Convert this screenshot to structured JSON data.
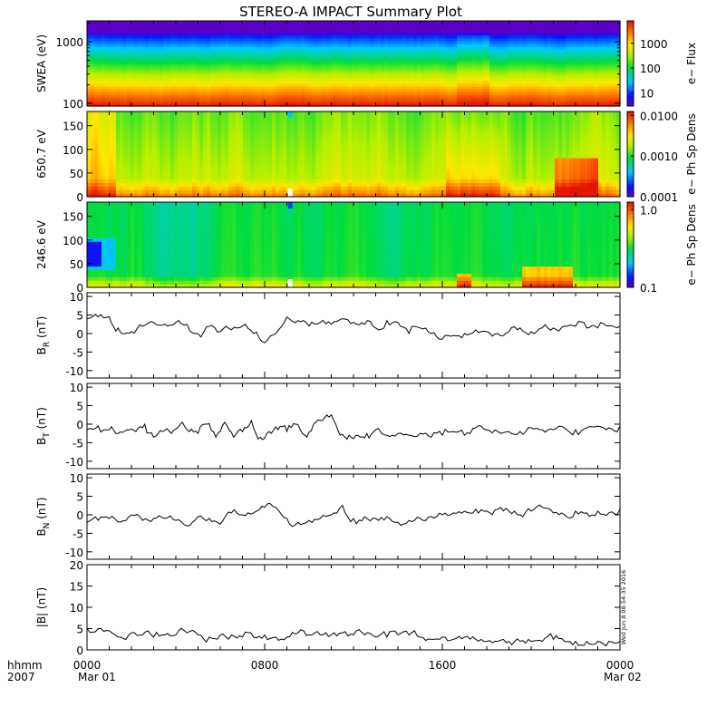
{
  "title": "STEREO-A IMPACT Summary Plot",
  "timestamp": "Wed Jun 8 08:54:35 2016",
  "x_axis": {
    "row1_label": "hhmm",
    "row2_label": "2007",
    "ticks": [
      {
        "hour": 0,
        "label": "0000",
        "date": "Mar 01"
      },
      {
        "hour": 8,
        "label": "0800",
        "date": ""
      },
      {
        "hour": 16,
        "label": "1600",
        "date": ""
      },
      {
        "hour": 24,
        "label": "0000",
        "date": "Mar 02"
      }
    ],
    "range_hours": [
      0,
      24
    ]
  },
  "chart_data": [
    {
      "type": "heatmap",
      "ylabel": "SWEA (eV)",
      "ylog": true,
      "ylim": [
        90,
        2200
      ],
      "yticks": [
        {
          "v": 1000,
          "label": "1000"
        },
        {
          "v": 100,
          "label": "100"
        }
      ],
      "colorbar": {
        "label": "e− Flux",
        "log": true,
        "range": [
          3,
          8000
        ],
        "ticks": [
          {
            "v": 1000,
            "label": "1000"
          },
          {
            "v": 100,
            "label": "100"
          },
          {
            "v": 10,
            "label": "10"
          }
        ]
      }
    },
    {
      "type": "heatmap",
      "ylabel": "650.7 eV",
      "ylim": [
        0,
        180
      ],
      "yticks": [
        {
          "v": 150,
          "label": "150"
        },
        {
          "v": 100,
          "label": "100"
        },
        {
          "v": 50,
          "label": "50"
        },
        {
          "v": 0,
          "label": "0"
        }
      ],
      "colorbar": {
        "label": "e− Ph Sp Dens",
        "log": true,
        "range": [
          0.0001,
          0.0125
        ],
        "ticks": [
          {
            "v": 0.01,
            "label": "0.0100"
          },
          {
            "v": 0.001,
            "label": "0.0010"
          },
          {
            "v": 0.0001,
            "label": "0.0001"
          }
        ]
      }
    },
    {
      "type": "heatmap",
      "ylabel": "246.6 eV",
      "ylim": [
        0,
        180
      ],
      "yticks": [
        {
          "v": 150,
          "label": "150"
        },
        {
          "v": 100,
          "label": "100"
        },
        {
          "v": 50,
          "label": "50"
        },
        {
          "v": 0,
          "label": "0"
        }
      ],
      "colorbar": {
        "label": "e− Ph Sp Dens",
        "log": true,
        "range": [
          0.1,
          1.25
        ],
        "ticks": [
          {
            "v": 1.0,
            "label": "1.0"
          },
          {
            "v": 0.1,
            "label": "0.1"
          }
        ]
      }
    },
    {
      "type": "line",
      "ylabel": "B",
      "ysub": "R",
      "yunit": " (nT)",
      "ylim": [
        -12,
        11
      ],
      "yticks": [
        10,
        5,
        0,
        -5,
        -10
      ],
      "x_hours": [
        0,
        0.5,
        1,
        1.4,
        1.6,
        2,
        2.5,
        3,
        3.5,
        4,
        4.5,
        5,
        5.5,
        6,
        6.5,
        7,
        7.5,
        8,
        8.5,
        9,
        9.5,
        10,
        10.5,
        11,
        11.5,
        12,
        12.5,
        13,
        13.5,
        14,
        14.5,
        15,
        15.5,
        16,
        16.5,
        17,
        17.5,
        18,
        18.5,
        19,
        19.5,
        20,
        20.5,
        21,
        21.5,
        22,
        22.5,
        23,
        23.5,
        24
      ],
      "values": [
        4,
        4.5,
        4.5,
        1.5,
        0,
        0.5,
        2,
        3,
        2.5,
        3,
        2.5,
        0,
        2,
        0.5,
        1,
        2,
        0,
        -2.5,
        0,
        4.5,
        3.5,
        2,
        3,
        2.5,
        4,
        3,
        2.5,
        1.5,
        3.5,
        3,
        0,
        1.5,
        0,
        -1.5,
        -0.5,
        0,
        1,
        0.5,
        0,
        0.5,
        1.5,
        0.5,
        1.5,
        1.5,
        2,
        2,
        1.5,
        1.5,
        2,
        2
      ]
    },
    {
      "type": "line",
      "ylabel": "B",
      "ysub": "T",
      "yunit": " (nT)",
      "ylim": [
        -12,
        11
      ],
      "yticks": [
        10,
        5,
        0,
        -5,
        -10
      ],
      "x_hours": [
        0,
        0.5,
        1,
        1.4,
        1.8,
        2.2,
        2.6,
        3,
        3.4,
        3.8,
        4.2,
        4.6,
        5,
        5.4,
        5.8,
        6.2,
        6.6,
        7,
        7.4,
        7.8,
        8.2,
        8.6,
        9,
        9.4,
        9.8,
        10.2,
        10.6,
        11,
        11.4,
        11.8,
        12.2,
        12.6,
        13,
        13.5,
        14,
        14.5,
        15,
        15.5,
        16,
        16.5,
        17,
        17.5,
        18,
        18.5,
        19,
        19.5,
        20,
        20.5,
        21,
        21.5,
        22,
        22.5,
        23,
        23.5,
        24
      ],
      "values": [
        -1.5,
        -0.5,
        -1.5,
        -2.5,
        -1.5,
        -2,
        0,
        -3.5,
        -2,
        -2.5,
        0,
        -2,
        -2.5,
        0,
        -3.5,
        0.5,
        -3.5,
        -2,
        1,
        -3.5,
        -2,
        -1.5,
        -2,
        0,
        -3,
        0,
        1,
        2.5,
        -3,
        -3,
        -3,
        -2.5,
        -1.5,
        -3,
        -2.5,
        -3,
        -2.5,
        -3.5,
        -3,
        -2,
        -3,
        -1,
        -1.5,
        -2,
        -2,
        -2,
        -1,
        -1.5,
        -1.5,
        -1,
        -1.5,
        -1,
        -0.5,
        -1,
        -0.5
      ]
    },
    {
      "type": "line",
      "ylabel": "B",
      "ysub": "N",
      "yunit": " (nT)",
      "ylim": [
        -12,
        11
      ],
      "yticks": [
        10,
        5,
        0,
        -5,
        -10
      ],
      "x_hours": [
        0,
        0.5,
        1,
        1.5,
        2,
        2.5,
        3,
        3.5,
        4,
        4.5,
        5,
        5.5,
        6,
        6.5,
        7,
        7.5,
        8,
        8.5,
        9,
        9.5,
        10,
        10.5,
        11,
        11.5,
        12,
        12.5,
        13,
        13.5,
        14,
        14.5,
        15,
        15.5,
        16,
        16.5,
        17,
        17.5,
        18,
        18.5,
        19,
        19.5,
        20,
        20.5,
        21,
        21.5,
        22,
        22.5,
        23,
        23.5,
        24
      ],
      "values": [
        -2,
        -1.5,
        -1,
        -2,
        0,
        -1.5,
        -1,
        -1,
        -1.5,
        -3,
        -0.5,
        -1,
        -2.5,
        0.5,
        0,
        0.5,
        2,
        2,
        -1,
        -2,
        -1.5,
        -1,
        0,
        2.5,
        -1,
        -0.5,
        -1,
        -0.5,
        -2,
        -1.5,
        -1,
        -0.5,
        0,
        0.5,
        1,
        1.5,
        1,
        1.5,
        1,
        0,
        1,
        2,
        0.5,
        0,
        1,
        0.5,
        1,
        0.5,
        1.5
      ]
    },
    {
      "type": "line",
      "ylabel": "|B|",
      "ysub": "",
      "yunit": " (nT)",
      "ylim": [
        0,
        20
      ],
      "yticks": [
        20,
        15,
        10,
        5,
        0
      ],
      "x_hours": [
        0,
        0.5,
        1,
        1.5,
        2,
        2.5,
        3,
        3.5,
        4,
        4.5,
        5,
        5.5,
        6,
        6.5,
        7,
        7.5,
        8,
        8.5,
        9,
        9.5,
        10,
        10.5,
        11,
        11.5,
        12,
        12.5,
        13,
        13.5,
        14,
        14.5,
        15,
        15.5,
        16,
        16.5,
        17,
        17.5,
        18,
        18.5,
        19,
        19.5,
        20,
        20.5,
        21,
        21.5,
        22,
        22.5,
        23,
        23.5,
        24
      ],
      "values": [
        5,
        5,
        4.5,
        3,
        4,
        3.5,
        3,
        3.5,
        3.5,
        4,
        3.5,
        3,
        3.5,
        3.5,
        3,
        3,
        3.5,
        3,
        3,
        4,
        3.5,
        3.5,
        3.5,
        4,
        3.5,
        3.5,
        3,
        3,
        3.5,
        3.5,
        3,
        2.5,
        3,
        2.5,
        3,
        2.5,
        2,
        2,
        2,
        2,
        2,
        2,
        2.5,
        2,
        2,
        2,
        2,
        2,
        2
      ]
    }
  ]
}
